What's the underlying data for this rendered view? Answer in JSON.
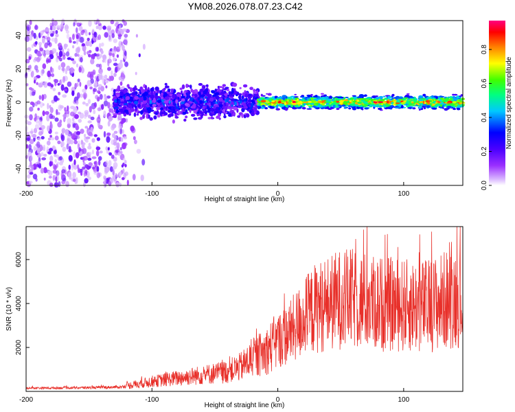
{
  "title": "YM08.2026.078.07.23.C42",
  "chart_data": [
    {
      "type": "heatmap",
      "name": "spectrogram",
      "xlabel": "Height of straight line (km)",
      "ylabel": "Frequency (Hz)",
      "xlim": [
        -200,
        147
      ],
      "ylim": [
        -50,
        49
      ],
      "xticks": [
        "-200",
        "-100",
        "0",
        "100"
      ],
      "yticks": [
        "-40",
        "-20",
        "0",
        "20",
        "40"
      ],
      "colorbar": {
        "label": "Normalized spectral amplitude",
        "range": [
          0,
          0.97
        ],
        "ticks": [
          "0.0",
          "0.2",
          "0.4",
          "0.6",
          "0.8"
        ],
        "colors": [
          "#ffffff",
          "#d8b4ff",
          "#9b30ff",
          "#4a00ff",
          "#0000ff",
          "#00c8ff",
          "#00ff80",
          "#40ff00",
          "#ffff00",
          "#ff8000",
          "#ff0000",
          "#ff0080"
        ]
      },
      "regions": [
        {
          "x": [
            -200,
            -120
          ],
          "freq_spread": [
            -50,
            49
          ],
          "amplitude": [
            0.03,
            0.2
          ],
          "description_value": "broadband"
        },
        {
          "x": [
            -130,
            -15
          ],
          "center_freq": 0,
          "freq_spread": [
            -12,
            8
          ],
          "amplitude": [
            0.1,
            0.4
          ]
        },
        {
          "x": [
            -15,
            147
          ],
          "center_freq": 0,
          "freq_spread": [
            -4,
            4
          ],
          "amplitude": [
            0.5,
            0.97
          ]
        }
      ]
    },
    {
      "type": "line",
      "name": "snr",
      "xlabel": "Height of straight line (km)",
      "ylabel": "SNR (10 * v/v)",
      "xlim": [
        -200,
        147
      ],
      "ylim": [
        0,
        7500
      ],
      "xticks": [
        "-200",
        "-100",
        "0",
        "100"
      ],
      "yticks": [
        "2000",
        "4000",
        "6000"
      ],
      "color": "#e8302a",
      "series": [
        {
          "name": "SNR",
          "x": [
            -200,
            -175,
            -150,
            -125,
            -110,
            -100,
            -80,
            -60,
            -40,
            -30,
            -20,
            -10,
            0,
            10,
            20,
            30,
            40,
            50,
            60,
            80,
            100,
            120,
            140,
            147
          ],
          "values": [
            150,
            160,
            170,
            200,
            350,
            450,
            600,
            750,
            900,
            1100,
            1500,
            1800,
            2300,
            2700,
            3300,
            3800,
            4000,
            4200,
            4200,
            4000,
            3900,
            3900,
            4300,
            4300
          ]
        }
      ]
    }
  ]
}
